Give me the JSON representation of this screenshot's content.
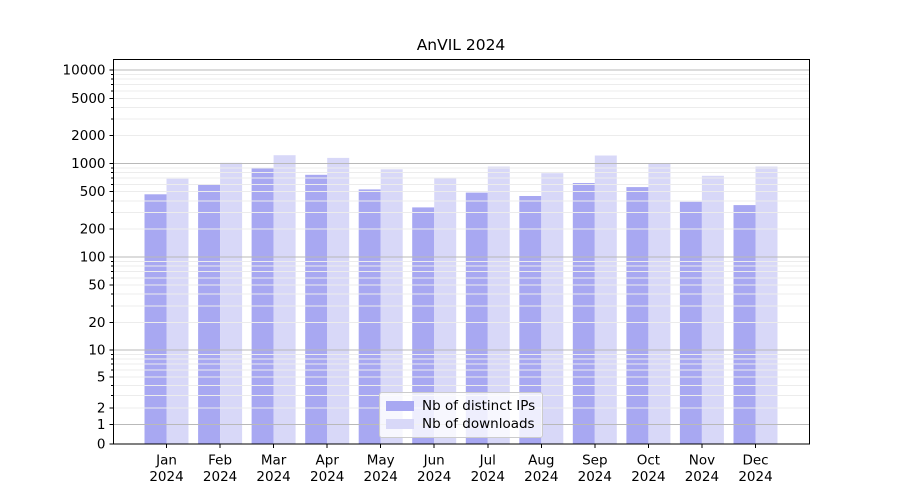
{
  "figure": {
    "title": "AnVIL 2024",
    "background_color": "#ffffff"
  },
  "chart_data": {
    "type": "bar",
    "title": "AnVIL 2024",
    "categories": [
      "Jan 2024",
      "Feb 2024",
      "Mar 2024",
      "Apr 2024",
      "May 2024",
      "Jun 2024",
      "Jul 2024",
      "Aug 2024",
      "Sep 2024",
      "Oct 2024",
      "Nov 2024",
      "Dec 2024"
    ],
    "x": {
      "months": [
        "Jan",
        "Feb",
        "Mar",
        "Apr",
        "May",
        "Jun",
        "Jul",
        "Aug",
        "Sep",
        "Oct",
        "Nov",
        "Dec"
      ],
      "year": "2024"
    },
    "series": [
      {
        "name": "Nb of distinct IPs",
        "color": "#a8a8f2",
        "values": [
          470,
          590,
          890,
          760,
          530,
          340,
          490,
          450,
          620,
          560,
          390,
          360
        ]
      },
      {
        "name": "Nb of downloads",
        "color": "#d8d8f8",
        "values": [
          690,
          1020,
          1230,
          1150,
          870,
          710,
          930,
          790,
          1220,
          1000,
          740,
          930
        ]
      }
    ],
    "y_axis": {
      "scale": "pseudo-log-asinh",
      "ticks": [
        0,
        1,
        2,
        5,
        10,
        20,
        50,
        100,
        200,
        500,
        1000,
        2000,
        5000,
        10000
      ],
      "max": 13000
    },
    "grid": {
      "major_color": "#b9b9b9",
      "minor_color": "#ececec"
    },
    "legend": {
      "position": "lower-center",
      "entries": [
        "Nb of distinct IPs",
        "Nb of downloads"
      ]
    },
    "axis_color": "#000000"
  }
}
